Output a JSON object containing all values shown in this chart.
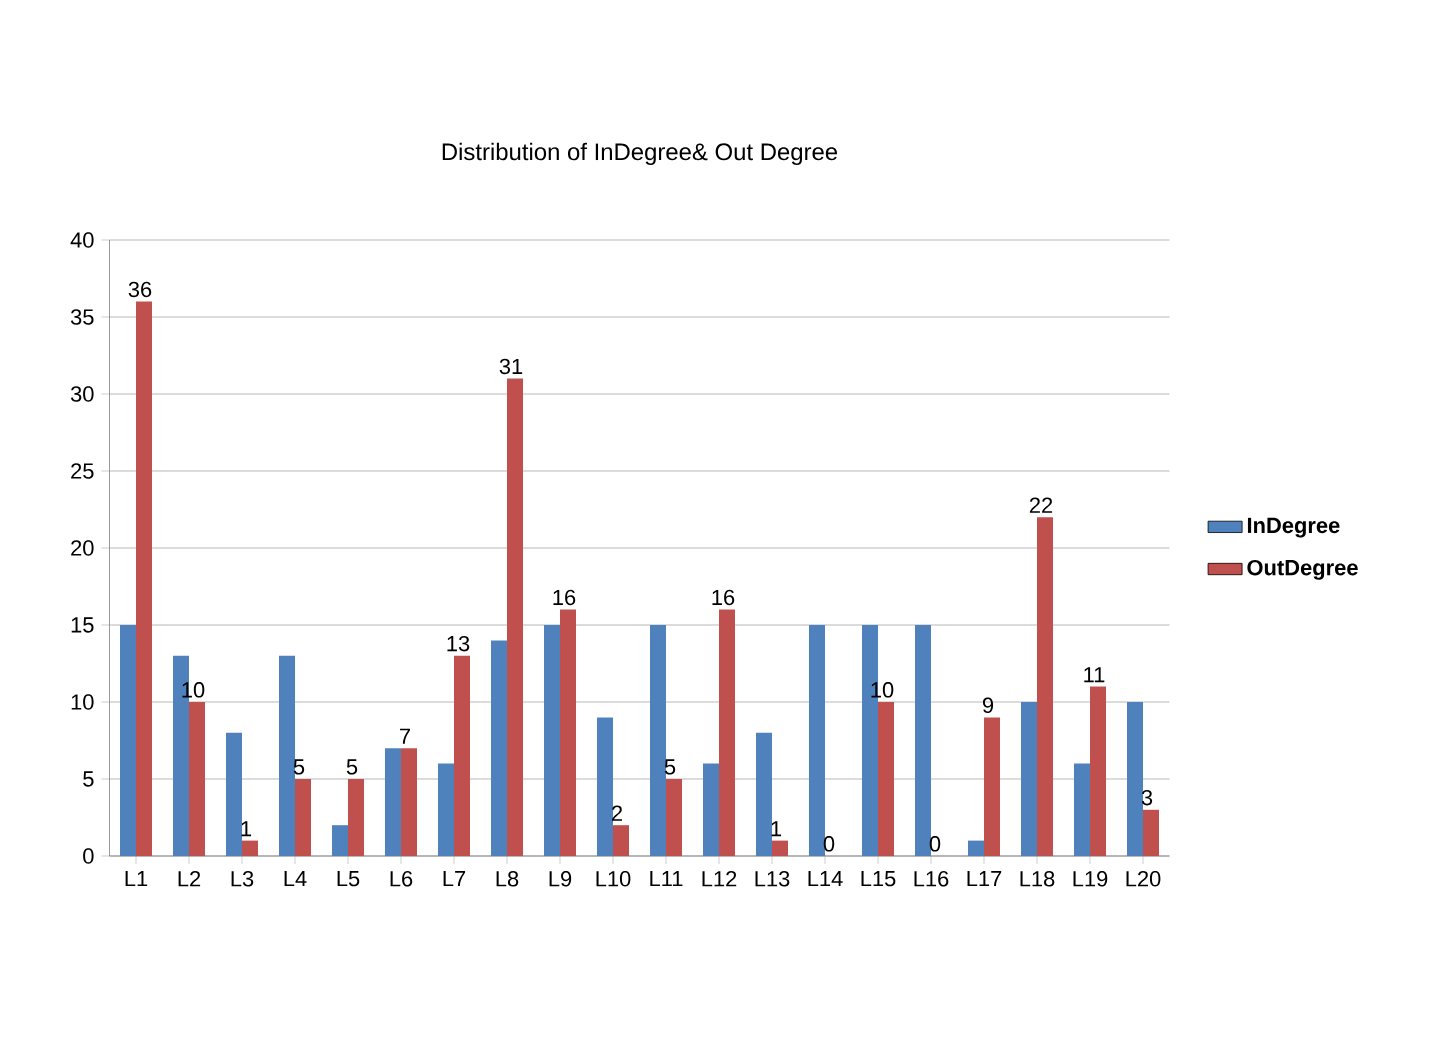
{
  "chart_data": {
    "type": "bar",
    "title": "Distribution of InDegree& Out Degree",
    "categories": [
      "L1",
      "L2",
      "L3",
      "L4",
      "L5",
      "L6",
      "L7",
      "L8",
      "L9",
      "L10",
      "L11",
      "L12",
      "L13",
      "L14",
      "L15",
      "L16",
      "L17",
      "L18",
      "L19",
      "L20"
    ],
    "series": [
      {
        "name": "InDegree",
        "color": "#4f81bd",
        "values": [
          15,
          13,
          8,
          13,
          2,
          7,
          6,
          14,
          15,
          9,
          15,
          6,
          8,
          15,
          15,
          15,
          1,
          10,
          6,
          10
        ]
      },
      {
        "name": "OutDegree",
        "color": "#c0504d",
        "values": [
          36,
          10,
          1,
          5,
          5,
          7,
          13,
          31,
          16,
          2,
          5,
          16,
          1,
          0,
          10,
          0,
          9,
          22,
          11,
          3
        ],
        "value_labels": [
          "36",
          "10",
          "1",
          "5",
          "5",
          "7",
          "13",
          "31",
          "16",
          "2",
          "5",
          "16",
          "1",
          "0",
          "10",
          "0",
          "9",
          "22",
          "11",
          "3"
        ]
      }
    ],
    "ylim": [
      0,
      40
    ],
    "yticks": [
      0,
      5,
      10,
      15,
      20,
      25,
      30,
      35,
      40
    ],
    "grid": "y",
    "legend": "right"
  }
}
